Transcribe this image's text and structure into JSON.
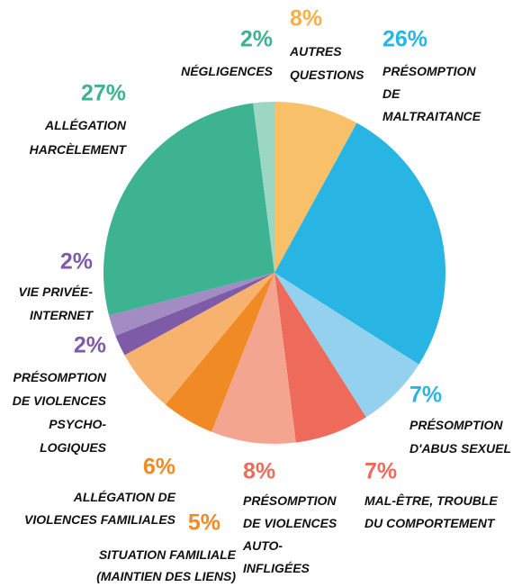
{
  "chart_data": {
    "type": "pie",
    "categories": [
      "AUTRES\nQUESTIONS",
      "PRÉSOMPTION\nDE\nMALTRAITANCE",
      "PRÉSOMPTION\nD'ABUS SEXUEL",
      "MAL-ÊTRE, TROUBLE\nDU COMPORTEMENT",
      "PRÉSOMPTION\nDE VIOLENCES\nAUTO-\nINFLIGÉES",
      "SITUATION FAMILIALE\n(MAINTIEN DES LIENS)",
      "ALLÉGATION DE\nVIOLENCES FAMILIALES",
      "PRÉSOMPTION\nDE VIOLENCES\nPSYCHO-\nLOGIQUES",
      "VIE PRIVÉE-\nINTERNET",
      "ALLÉGATION\nHARCÈLEMENT",
      "NÉGLIGENCES"
    ],
    "values": [
      8,
      26,
      7,
      7,
      8,
      5,
      6,
      2,
      2,
      27,
      2
    ],
    "value_labels": [
      "8%",
      "26%",
      "7%",
      "7%",
      "8%",
      "5%",
      "6%",
      "2%",
      "2%",
      "27%",
      "2%"
    ],
    "colors": [
      "#f9c06a",
      "#29b5e3",
      "#93d1ef",
      "#ee6b5b",
      "#f4a590",
      "#f08a24",
      "#f7b26e",
      "#7e5ba6",
      "#a38bc4",
      "#3eb391",
      "#9ed6c4"
    ]
  }
}
